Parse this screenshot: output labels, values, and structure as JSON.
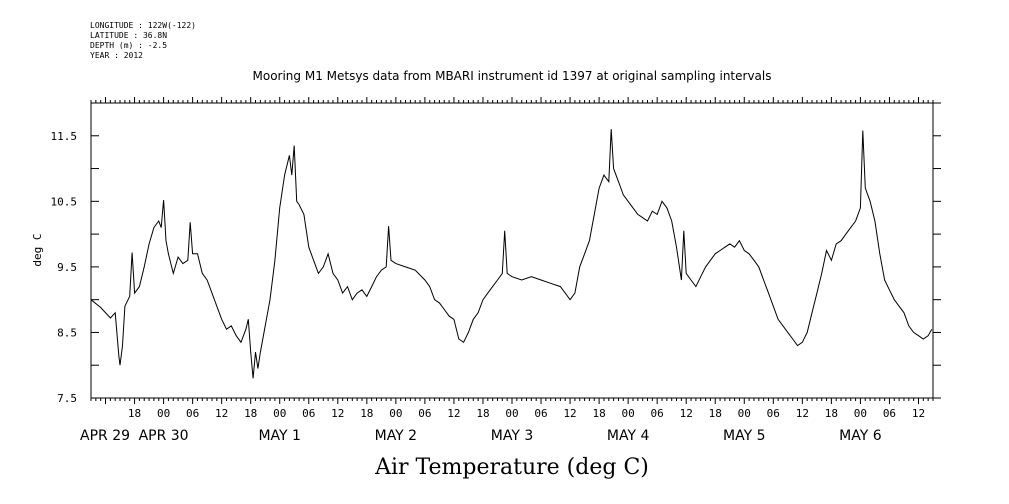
{
  "meta": {
    "longitude": "LONGITUDE : 122W(-122)",
    "latitude": "LATITUDE : 36.8N",
    "depth": "DEPTH (m) : -2.5",
    "year": "YEAR : 2012"
  },
  "chart_data": {
    "type": "line",
    "title": "Mooring M1 Metsys data from MBARI instrument id 1397 at original sampling intervals",
    "xlabel": "Air Temperature (deg C)",
    "ylabel": "deg C",
    "ylim": [
      7.5,
      12.0
    ],
    "xlim": [
      "2012-04-29T09:00",
      "2012-05-06T15:00"
    ],
    "y_ticks": [
      "7.5",
      "8.5",
      "9.5",
      "10.5",
      "11.5"
    ],
    "hour_ticks": [
      {
        "t": "2012-04-29T18:00",
        "label": "18"
      },
      {
        "t": "2012-04-30T00:00",
        "label": "00"
      },
      {
        "t": "2012-04-30T06:00",
        "label": "06"
      },
      {
        "t": "2012-04-30T12:00",
        "label": "12"
      },
      {
        "t": "2012-04-30T18:00",
        "label": "18"
      },
      {
        "t": "2012-05-01T00:00",
        "label": "00"
      },
      {
        "t": "2012-05-01T06:00",
        "label": "06"
      },
      {
        "t": "2012-05-01T12:00",
        "label": "12"
      },
      {
        "t": "2012-05-01T18:00",
        "label": "18"
      },
      {
        "t": "2012-05-02T00:00",
        "label": "00"
      },
      {
        "t": "2012-05-02T06:00",
        "label": "06"
      },
      {
        "t": "2012-05-02T12:00",
        "label": "12"
      },
      {
        "t": "2012-05-02T18:00",
        "label": "18"
      },
      {
        "t": "2012-05-03T00:00",
        "label": "00"
      },
      {
        "t": "2012-05-03T06:00",
        "label": "06"
      },
      {
        "t": "2012-05-03T12:00",
        "label": "12"
      },
      {
        "t": "2012-05-03T18:00",
        "label": "18"
      },
      {
        "t": "2012-05-04T00:00",
        "label": "00"
      },
      {
        "t": "2012-05-04T06:00",
        "label": "06"
      },
      {
        "t": "2012-05-04T12:00",
        "label": "12"
      },
      {
        "t": "2012-05-04T18:00",
        "label": "18"
      },
      {
        "t": "2012-05-05T00:00",
        "label": "00"
      },
      {
        "t": "2012-05-05T06:00",
        "label": "06"
      },
      {
        "t": "2012-05-05T12:00",
        "label": "12"
      },
      {
        "t": "2012-05-05T18:00",
        "label": "18"
      },
      {
        "t": "2012-05-06T00:00",
        "label": "00"
      },
      {
        "t": "2012-05-06T06:00",
        "label": "06"
      },
      {
        "t": "2012-05-06T12:00",
        "label": "12"
      }
    ],
    "date_labels": [
      {
        "t": "2012-04-29T00:00",
        "label": "APR 29"
      },
      {
        "t": "2012-04-30T00:00",
        "label": "APR 30"
      },
      {
        "t": "2012-05-01T00:00",
        "label": "MAY  1"
      },
      {
        "t": "2012-05-02T00:00",
        "label": "MAY  2"
      },
      {
        "t": "2012-05-03T00:00",
        "label": "MAY  3"
      },
      {
        "t": "2012-05-04T00:00",
        "label": "MAY  4"
      },
      {
        "t": "2012-05-05T00:00",
        "label": "MAY  5"
      },
      {
        "t": "2012-05-06T00:00",
        "label": "MAY  6"
      }
    ],
    "series": [
      {
        "values": [
          [
            "2012-04-29T09:00",
            9.0
          ],
          [
            "2012-04-29T11:00",
            8.88
          ],
          [
            "2012-04-29T13:00",
            8.72
          ],
          [
            "2012-04-29T14:00",
            8.8
          ],
          [
            "2012-04-29T14:45",
            8.15
          ],
          [
            "2012-04-29T15:00",
            8.0
          ],
          [
            "2012-04-29T15:30",
            8.3
          ],
          [
            "2012-04-29T16:00",
            8.9
          ],
          [
            "2012-04-29T17:00",
            9.05
          ],
          [
            "2012-04-29T17:30",
            9.72
          ],
          [
            "2012-04-29T18:00",
            9.1
          ],
          [
            "2012-04-29T19:00",
            9.2
          ],
          [
            "2012-04-29T20:00",
            9.5
          ],
          [
            "2012-04-29T21:00",
            9.85
          ],
          [
            "2012-04-29T22:00",
            10.1
          ],
          [
            "2012-04-29T23:00",
            10.2
          ],
          [
            "2012-04-29T23:30",
            10.1
          ],
          [
            "2012-04-30T00:00",
            10.52
          ],
          [
            "2012-04-30T00:30",
            9.9
          ],
          [
            "2012-04-30T01:00",
            9.7
          ],
          [
            "2012-04-30T02:00",
            9.4
          ],
          [
            "2012-04-30T03:00",
            9.65
          ],
          [
            "2012-04-30T04:00",
            9.55
          ],
          [
            "2012-04-30T05:00",
            9.6
          ],
          [
            "2012-04-30T05:30",
            10.18
          ],
          [
            "2012-04-30T06:00",
            9.7
          ],
          [
            "2012-04-30T07:00",
            9.7
          ],
          [
            "2012-04-30T08:00",
            9.4
          ],
          [
            "2012-04-30T09:00",
            9.3
          ],
          [
            "2012-04-30T10:00",
            9.1
          ],
          [
            "2012-04-30T11:00",
            8.9
          ],
          [
            "2012-04-30T12:00",
            8.7
          ],
          [
            "2012-04-30T13:00",
            8.55
          ],
          [
            "2012-04-30T14:00",
            8.6
          ],
          [
            "2012-04-30T15:00",
            8.45
          ],
          [
            "2012-04-30T16:00",
            8.35
          ],
          [
            "2012-04-30T17:00",
            8.55
          ],
          [
            "2012-04-30T17:30",
            8.7
          ],
          [
            "2012-04-30T18:00",
            8.2
          ],
          [
            "2012-04-30T18:30",
            7.8
          ],
          [
            "2012-04-30T19:00",
            8.2
          ],
          [
            "2012-04-30T19:30",
            7.95
          ],
          [
            "2012-04-30T20:00",
            8.2
          ],
          [
            "2012-04-30T21:00",
            8.6
          ],
          [
            "2012-04-30T22:00",
            9.0
          ],
          [
            "2012-04-30T23:00",
            9.6
          ],
          [
            "2012-05-01T00:00",
            10.4
          ],
          [
            "2012-05-01T01:00",
            10.9
          ],
          [
            "2012-05-01T02:00",
            11.2
          ],
          [
            "2012-05-01T02:30",
            10.9
          ],
          [
            "2012-05-01T03:00",
            11.35
          ],
          [
            "2012-05-01T03:30",
            10.5
          ],
          [
            "2012-05-01T04:00",
            10.45
          ],
          [
            "2012-05-01T05:00",
            10.3
          ],
          [
            "2012-05-01T06:00",
            9.8
          ],
          [
            "2012-05-01T07:00",
            9.6
          ],
          [
            "2012-05-01T08:00",
            9.4
          ],
          [
            "2012-05-01T09:00",
            9.5
          ],
          [
            "2012-05-01T10:00",
            9.7
          ],
          [
            "2012-05-01T11:00",
            9.4
          ],
          [
            "2012-05-01T12:00",
            9.3
          ],
          [
            "2012-05-01T13:00",
            9.1
          ],
          [
            "2012-05-01T14:00",
            9.2
          ],
          [
            "2012-05-01T15:00",
            9.0
          ],
          [
            "2012-05-01T16:00",
            9.1
          ],
          [
            "2012-05-01T17:00",
            9.15
          ],
          [
            "2012-05-01T18:00",
            9.05
          ],
          [
            "2012-05-01T19:00",
            9.2
          ],
          [
            "2012-05-01T20:00",
            9.35
          ],
          [
            "2012-05-01T21:00",
            9.45
          ],
          [
            "2012-05-01T22:00",
            9.5
          ],
          [
            "2012-05-01T22:30",
            10.12
          ],
          [
            "2012-05-01T23:00",
            9.6
          ],
          [
            "2012-05-02T00:00",
            9.55
          ],
          [
            "2012-05-02T02:00",
            9.5
          ],
          [
            "2012-05-02T04:00",
            9.45
          ],
          [
            "2012-05-02T06:00",
            9.3
          ],
          [
            "2012-05-02T07:00",
            9.2
          ],
          [
            "2012-05-02T08:00",
            9.0
          ],
          [
            "2012-05-02T09:00",
            8.95
          ],
          [
            "2012-05-02T10:00",
            8.85
          ],
          [
            "2012-05-02T11:00",
            8.75
          ],
          [
            "2012-05-02T12:00",
            8.7
          ],
          [
            "2012-05-02T13:00",
            8.4
          ],
          [
            "2012-05-02T14:00",
            8.35
          ],
          [
            "2012-05-02T15:00",
            8.5
          ],
          [
            "2012-05-02T16:00",
            8.7
          ],
          [
            "2012-05-02T17:00",
            8.8
          ],
          [
            "2012-05-02T18:00",
            9.0
          ],
          [
            "2012-05-02T19:00",
            9.1
          ],
          [
            "2012-05-02T20:00",
            9.2
          ],
          [
            "2012-05-02T21:00",
            9.3
          ],
          [
            "2012-05-02T22:00",
            9.4
          ],
          [
            "2012-05-02T22:30",
            10.05
          ],
          [
            "2012-05-02T23:00",
            9.4
          ],
          [
            "2012-05-03T00:00",
            9.35
          ],
          [
            "2012-05-03T02:00",
            9.3
          ],
          [
            "2012-05-03T04:00",
            9.35
          ],
          [
            "2012-05-03T06:00",
            9.3
          ],
          [
            "2012-05-03T08:00",
            9.25
          ],
          [
            "2012-05-03T10:00",
            9.2
          ],
          [
            "2012-05-03T12:00",
            9.0
          ],
          [
            "2012-05-03T13:00",
            9.1
          ],
          [
            "2012-05-03T14:00",
            9.5
          ],
          [
            "2012-05-03T15:00",
            9.7
          ],
          [
            "2012-05-03T16:00",
            9.9
          ],
          [
            "2012-05-03T17:00",
            10.3
          ],
          [
            "2012-05-03T18:00",
            10.7
          ],
          [
            "2012-05-03T19:00",
            10.9
          ],
          [
            "2012-05-03T20:00",
            10.8
          ],
          [
            "2012-05-03T20:30",
            11.6
          ],
          [
            "2012-05-03T21:00",
            11.0
          ],
          [
            "2012-05-03T22:00",
            10.8
          ],
          [
            "2012-05-03T23:00",
            10.6
          ],
          [
            "2012-05-04T00:00",
            10.5
          ],
          [
            "2012-05-04T01:00",
            10.4
          ],
          [
            "2012-05-04T02:00",
            10.3
          ],
          [
            "2012-05-04T03:00",
            10.25
          ],
          [
            "2012-05-04T04:00",
            10.2
          ],
          [
            "2012-05-04T05:00",
            10.35
          ],
          [
            "2012-05-04T06:00",
            10.3
          ],
          [
            "2012-05-04T07:00",
            10.5
          ],
          [
            "2012-05-04T08:00",
            10.4
          ],
          [
            "2012-05-04T09:00",
            10.2
          ],
          [
            "2012-05-04T10:00",
            9.8
          ],
          [
            "2012-05-04T11:00",
            9.3
          ],
          [
            "2012-05-04T11:30",
            10.05
          ],
          [
            "2012-05-04T12:00",
            9.4
          ],
          [
            "2012-05-04T13:00",
            9.3
          ],
          [
            "2012-05-04T14:00",
            9.2
          ],
          [
            "2012-05-04T15:00",
            9.35
          ],
          [
            "2012-05-04T16:00",
            9.5
          ],
          [
            "2012-05-04T17:00",
            9.6
          ],
          [
            "2012-05-04T18:00",
            9.7
          ],
          [
            "2012-05-04T19:00",
            9.75
          ],
          [
            "2012-05-04T20:00",
            9.8
          ],
          [
            "2012-05-04T21:00",
            9.85
          ],
          [
            "2012-05-04T22:00",
            9.8
          ],
          [
            "2012-05-04T23:00",
            9.9
          ],
          [
            "2012-05-05T00:00",
            9.75
          ],
          [
            "2012-05-05T01:00",
            9.7
          ],
          [
            "2012-05-05T02:00",
            9.6
          ],
          [
            "2012-05-05T03:00",
            9.5
          ],
          [
            "2012-05-05T04:00",
            9.3
          ],
          [
            "2012-05-05T05:00",
            9.1
          ],
          [
            "2012-05-05T06:00",
            8.9
          ],
          [
            "2012-05-05T07:00",
            8.7
          ],
          [
            "2012-05-05T08:00",
            8.6
          ],
          [
            "2012-05-05T09:00",
            8.5
          ],
          [
            "2012-05-05T10:00",
            8.4
          ],
          [
            "2012-05-05T11:00",
            8.3
          ],
          [
            "2012-05-05T12:00",
            8.35
          ],
          [
            "2012-05-05T13:00",
            8.5
          ],
          [
            "2012-05-05T14:00",
            8.8
          ],
          [
            "2012-05-05T15:00",
            9.1
          ],
          [
            "2012-05-05T16:00",
            9.4
          ],
          [
            "2012-05-05T17:00",
            9.75
          ],
          [
            "2012-05-05T18:00",
            9.6
          ],
          [
            "2012-05-05T19:00",
            9.85
          ],
          [
            "2012-05-05T20:00",
            9.9
          ],
          [
            "2012-05-05T21:00",
            10.0
          ],
          [
            "2012-05-05T22:00",
            10.1
          ],
          [
            "2012-05-05T23:00",
            10.2
          ],
          [
            "2012-05-06T00:00",
            10.4
          ],
          [
            "2012-05-06T00:30",
            11.58
          ],
          [
            "2012-05-06T01:00",
            10.7
          ],
          [
            "2012-05-06T02:00",
            10.5
          ],
          [
            "2012-05-06T03:00",
            10.2
          ],
          [
            "2012-05-06T04:00",
            9.7
          ],
          [
            "2012-05-06T05:00",
            9.3
          ],
          [
            "2012-05-06T06:00",
            9.15
          ],
          [
            "2012-05-06T07:00",
            9.0
          ],
          [
            "2012-05-06T08:00",
            8.9
          ],
          [
            "2012-05-06T09:00",
            8.8
          ],
          [
            "2012-05-06T10:00",
            8.6
          ],
          [
            "2012-05-06T11:00",
            8.5
          ],
          [
            "2012-05-06T12:00",
            8.45
          ],
          [
            "2012-05-06T13:00",
            8.4
          ],
          [
            "2012-05-06T14:00",
            8.45
          ],
          [
            "2012-05-06T14:45",
            8.55
          ]
        ]
      }
    ]
  }
}
